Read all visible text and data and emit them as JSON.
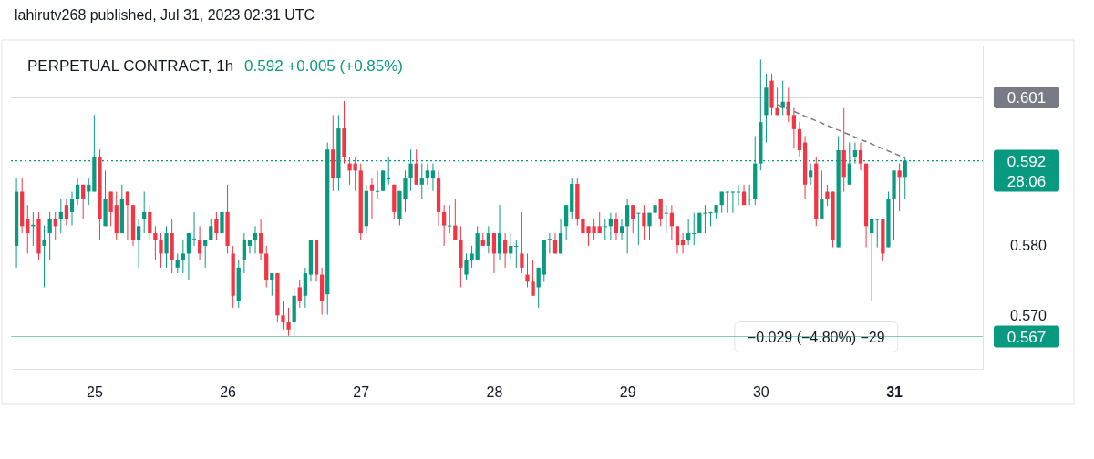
{
  "chart_data": {
    "type": "candlestick",
    "title": "PERPETUAL CONTRACT, 1h",
    "subtitle": "0.592 +0.005 (+0.85%)",
    "annotations": [
      "lahirutv268 published, Jul 31, 2023 02:31 UTC",
      "28:06",
      {
        "text": "−0.029 (−4.80%) −29",
        "x": "2023-07-30T10:00",
        "y": 0.567
      }
    ],
    "xlim": [
      "2023-07-24T09:00",
      "2023-07-31T16:00"
    ],
    "xticks": [
      {
        "value": "2023-07-25",
        "label": "25"
      },
      {
        "value": "2023-07-26",
        "label": "26"
      },
      {
        "value": "2023-07-27",
        "label": "27"
      },
      {
        "value": "2023-07-28",
        "label": "28"
      },
      {
        "value": "2023-07-29",
        "label": "29"
      },
      {
        "value": "2023-07-30",
        "label": "30"
      },
      {
        "value": "2023-07-31",
        "label": "31"
      }
    ],
    "ylim": [
      0.5624,
      0.6084
    ],
    "yticks": [
      {
        "value": 0.57,
        "label": "0.570"
      },
      {
        "value": 0.58,
        "label": "0.580"
      }
    ],
    "grid": false,
    "ref_lines": [
      {
        "axis": "y",
        "value": 0.601,
        "label": "0.601",
        "color": "#787b86",
        "line_style": "solid"
      },
      {
        "axis": "y",
        "value": 0.592,
        "label": "0.592",
        "color": "#089981",
        "line_style": "dotted"
      },
      {
        "axis": "y",
        "value": 0.567,
        "label": "0.567",
        "color": "#089981",
        "line_style": "solid"
      }
    ],
    "x": [
      "2023-07-24T10:00",
      "2023-07-24T11:00",
      "2023-07-24T12:00",
      "2023-07-24T13:00",
      "2023-07-24T14:00",
      "2023-07-24T15:00",
      "2023-07-24T16:00",
      "2023-07-24T17:00",
      "2023-07-24T18:00",
      "2023-07-24T19:00",
      "2023-07-24T20:00",
      "2023-07-24T21:00",
      "2023-07-24T22:00",
      "2023-07-24T23:00",
      "2023-07-25T00:00",
      "2023-07-25T01:00",
      "2023-07-25T02:00",
      "2023-07-25T03:00",
      "2023-07-25T04:00",
      "2023-07-25T05:00",
      "2023-07-25T06:00",
      "2023-07-25T07:00",
      "2023-07-25T08:00",
      "2023-07-25T09:00",
      "2023-07-25T10:00",
      "2023-07-25T11:00",
      "2023-07-25T12:00",
      "2023-07-25T13:00",
      "2023-07-25T14:00",
      "2023-07-25T15:00",
      "2023-07-25T16:00",
      "2023-07-25T17:00",
      "2023-07-25T18:00",
      "2023-07-25T19:00",
      "2023-07-25T20:00",
      "2023-07-25T21:00",
      "2023-07-25T22:00",
      "2023-07-25T23:00",
      "2023-07-26T00:00",
      "2023-07-26T01:00",
      "2023-07-26T02:00",
      "2023-07-26T03:00",
      "2023-07-26T04:00",
      "2023-07-26T05:00",
      "2023-07-26T06:00",
      "2023-07-26T07:00",
      "2023-07-26T08:00",
      "2023-07-26T09:00",
      "2023-07-26T10:00",
      "2023-07-26T11:00",
      "2023-07-26T12:00",
      "2023-07-26T13:00",
      "2023-07-26T14:00",
      "2023-07-26T15:00",
      "2023-07-26T16:00",
      "2023-07-26T17:00",
      "2023-07-26T18:00",
      "2023-07-26T19:00",
      "2023-07-26T20:00",
      "2023-07-26T21:00",
      "2023-07-26T22:00",
      "2023-07-26T23:00",
      "2023-07-27T00:00",
      "2023-07-27T01:00",
      "2023-07-27T02:00",
      "2023-07-27T03:00",
      "2023-07-27T04:00",
      "2023-07-27T05:00",
      "2023-07-27T06:00",
      "2023-07-27T07:00",
      "2023-07-27T08:00",
      "2023-07-27T09:00",
      "2023-07-27T10:00",
      "2023-07-27T11:00",
      "2023-07-27T12:00",
      "2023-07-27T13:00",
      "2023-07-27T14:00",
      "2023-07-27T15:00",
      "2023-07-27T16:00",
      "2023-07-27T17:00",
      "2023-07-27T18:00",
      "2023-07-27T19:00",
      "2023-07-27T20:00",
      "2023-07-27T21:00",
      "2023-07-27T22:00",
      "2023-07-27T23:00",
      "2023-07-28T00:00",
      "2023-07-28T01:00",
      "2023-07-28T02:00",
      "2023-07-28T03:00",
      "2023-07-28T04:00",
      "2023-07-28T05:00",
      "2023-07-28T06:00",
      "2023-07-28T07:00",
      "2023-07-28T08:00",
      "2023-07-28T09:00",
      "2023-07-28T10:00",
      "2023-07-28T11:00",
      "2023-07-28T12:00",
      "2023-07-28T13:00",
      "2023-07-28T14:00",
      "2023-07-28T15:00",
      "2023-07-28T16:00",
      "2023-07-28T17:00",
      "2023-07-28T18:00",
      "2023-07-28T19:00",
      "2023-07-28T20:00",
      "2023-07-28T21:00",
      "2023-07-28T22:00",
      "2023-07-28T23:00",
      "2023-07-29T00:00",
      "2023-07-29T01:00",
      "2023-07-29T02:00",
      "2023-07-29T03:00",
      "2023-07-29T04:00",
      "2023-07-29T05:00",
      "2023-07-29T06:00",
      "2023-07-29T07:00",
      "2023-07-29T08:00",
      "2023-07-29T09:00",
      "2023-07-29T10:00",
      "2023-07-29T11:00",
      "2023-07-29T12:00",
      "2023-07-29T13:00",
      "2023-07-29T14:00",
      "2023-07-29T15:00",
      "2023-07-29T16:00",
      "2023-07-29T17:00",
      "2023-07-29T18:00",
      "2023-07-29T19:00",
      "2023-07-29T20:00",
      "2023-07-29T21:00",
      "2023-07-29T22:00",
      "2023-07-29T23:00",
      "2023-07-30T00:00",
      "2023-07-30T01:00",
      "2023-07-30T02:00",
      "2023-07-30T03:00",
      "2023-07-30T04:00",
      "2023-07-30T05:00",
      "2023-07-30T06:00",
      "2023-07-30T07:00",
      "2023-07-30T08:00",
      "2023-07-30T09:00",
      "2023-07-30T10:00",
      "2023-07-30T11:00",
      "2023-07-30T12:00",
      "2023-07-30T13:00",
      "2023-07-30T14:00",
      "2023-07-30T15:00",
      "2023-07-30T16:00",
      "2023-07-30T17:00",
      "2023-07-30T18:00",
      "2023-07-30T19:00",
      "2023-07-30T20:00",
      "2023-07-30T21:00",
      "2023-07-30T22:00",
      "2023-07-30T23:00",
      "2023-07-31T00:00",
      "2023-07-31T01:00",
      "2023-07-31T02:00"
    ],
    "ohlc": [
      [
        0.5799,
        0.5896,
        0.5768,
        0.5876
      ],
      [
        0.5876,
        0.5896,
        0.5817,
        0.5827
      ],
      [
        0.5837,
        0.5857,
        0.5788,
        0.5817
      ],
      [
        0.5827,
        0.5847,
        0.5799,
        0.5829
      ],
      [
        0.5837,
        0.5847,
        0.5779,
        0.5788
      ],
      [
        0.5799,
        0.5828,
        0.574,
        0.5808
      ],
      [
        0.5817,
        0.5847,
        0.5779,
        0.5837
      ],
      [
        0.5837,
        0.5847,
        0.5808,
        0.5827
      ],
      [
        0.5837,
        0.5866,
        0.5817,
        0.5847
      ],
      [
        0.5857,
        0.5866,
        0.5828,
        0.5837
      ],
      [
        0.5847,
        0.5876,
        0.5828,
        0.5866
      ],
      [
        0.5866,
        0.5896,
        0.5857,
        0.5886
      ],
      [
        0.5886,
        0.5886,
        0.5837,
        0.5866
      ],
      [
        0.5876,
        0.5896,
        0.5857,
        0.5886
      ],
      [
        0.5876,
        0.5985,
        0.5876,
        0.5926
      ],
      [
        0.5926,
        0.5936,
        0.5808,
        0.5837
      ],
      [
        0.5827,
        0.5906,
        0.5827,
        0.5866
      ],
      [
        0.5876,
        0.5876,
        0.5827,
        0.5847
      ],
      [
        0.5857,
        0.5876,
        0.5808,
        0.5817
      ],
      [
        0.5817,
        0.5886,
        0.5817,
        0.5866
      ],
      [
        0.5876,
        0.5876,
        0.5808,
        0.5857
      ],
      [
        0.5857,
        0.5857,
        0.5799,
        0.5808
      ],
      [
        0.5808,
        0.5837,
        0.5768,
        0.5827
      ],
      [
        0.5837,
        0.5876,
        0.5817,
        0.5847
      ],
      [
        0.5847,
        0.5857,
        0.5808,
        0.5817
      ],
      [
        0.5817,
        0.5827,
        0.5779,
        0.5808
      ],
      [
        0.5808,
        0.5817,
        0.5768,
        0.5788
      ],
      [
        0.5788,
        0.5827,
        0.5768,
        0.5817
      ],
      [
        0.5817,
        0.5837,
        0.576,
        0.5779
      ],
      [
        0.5768,
        0.5788,
        0.576,
        0.5779
      ],
      [
        0.5779,
        0.5808,
        0.576,
        0.5788
      ],
      [
        0.5788,
        0.5817,
        0.575,
        0.5817
      ],
      [
        0.5808,
        0.5847,
        0.5799,
        0.5809
      ],
      [
        0.5808,
        0.5827,
        0.5779,
        0.5788
      ],
      [
        0.5799,
        0.5808,
        0.5768,
        0.5808
      ],
      [
        0.5808,
        0.5837,
        0.5808,
        0.5827
      ],
      [
        0.5837,
        0.5847,
        0.5808,
        0.5817
      ],
      [
        0.5817,
        0.5847,
        0.5799,
        0.5847
      ],
      [
        0.5847,
        0.5886,
        0.5788,
        0.5799
      ],
      [
        0.5788,
        0.5799,
        0.5711,
        0.5728
      ],
      [
        0.572,
        0.5779,
        0.5711,
        0.5768
      ],
      [
        0.5779,
        0.5817,
        0.576,
        0.5808
      ],
      [
        0.5799,
        0.5808,
        0.5788,
        0.5808
      ],
      [
        0.5808,
        0.5827,
        0.5788,
        0.5817
      ],
      [
        0.5817,
        0.5837,
        0.5779,
        0.5788
      ],
      [
        0.5788,
        0.5799,
        0.574,
        0.575
      ],
      [
        0.575,
        0.576,
        0.5728,
        0.576
      ],
      [
        0.576,
        0.576,
        0.569,
        0.57
      ],
      [
        0.57,
        0.572,
        0.568,
        0.569
      ],
      [
        0.569,
        0.5711,
        0.5671,
        0.568
      ],
      [
        0.569,
        0.574,
        0.5671,
        0.5728
      ],
      [
        0.574,
        0.575,
        0.5711,
        0.572
      ],
      [
        0.5728,
        0.5768,
        0.5711,
        0.576
      ],
      [
        0.5758,
        0.5808,
        0.5748,
        0.5808
      ],
      [
        0.5808,
        0.5808,
        0.5748,
        0.5758
      ],
      [
        0.5758,
        0.5768,
        0.5701,
        0.572
      ],
      [
        0.573,
        0.5946,
        0.5701,
        0.5936
      ],
      [
        0.5936,
        0.5985,
        0.5877,
        0.5896
      ],
      [
        0.5896,
        0.5985,
        0.5877,
        0.5966
      ],
      [
        0.5966,
        0.6005,
        0.5916,
        0.5926
      ],
      [
        0.5916,
        0.5926,
        0.5886,
        0.5906
      ],
      [
        0.5916,
        0.5926,
        0.5877,
        0.5906
      ],
      [
        0.5906,
        0.5916,
        0.5808,
        0.5817
      ],
      [
        0.5827,
        0.5886,
        0.5817,
        0.5877
      ],
      [
        0.5886,
        0.5896,
        0.5837,
        0.5877
      ],
      [
        0.5877,
        0.5906,
        0.5866,
        0.5877
      ],
      [
        0.5877,
        0.5906,
        0.5877,
        0.5906
      ],
      [
        0.5896,
        0.5926,
        0.5886,
        0.5896
      ],
      [
        0.5886,
        0.5886,
        0.5837,
        0.5847
      ],
      [
        0.5837,
        0.5877,
        0.5828,
        0.5877
      ],
      [
        0.5866,
        0.5906,
        0.5847,
        0.5896
      ],
      [
        0.5896,
        0.5936,
        0.5877,
        0.5916
      ],
      [
        0.5916,
        0.5936,
        0.5886,
        0.5886
      ],
      [
        0.5886,
        0.5916,
        0.5866,
        0.5896
      ],
      [
        0.5896,
        0.5916,
        0.5886,
        0.5906
      ],
      [
        0.5896,
        0.5916,
        0.5877,
        0.5906
      ],
      [
        0.5896,
        0.5906,
        0.5828,
        0.5847
      ],
      [
        0.5847,
        0.5857,
        0.5799,
        0.5828
      ],
      [
        0.5828,
        0.5857,
        0.5817,
        0.5828
      ],
      [
        0.5828,
        0.5866,
        0.5808,
        0.5808
      ],
      [
        0.5808,
        0.5827,
        0.574,
        0.5768
      ],
      [
        0.5758,
        0.5788,
        0.575,
        0.5779
      ],
      [
        0.5779,
        0.5799,
        0.5768,
        0.5788
      ],
      [
        0.5779,
        0.5827,
        0.5779,
        0.5817
      ],
      [
        0.5808,
        0.5817,
        0.5799,
        0.5799
      ],
      [
        0.5799,
        0.5827,
        0.5788,
        0.5817
      ],
      [
        0.5817,
        0.5817,
        0.576,
        0.5788
      ],
      [
        0.5788,
        0.5857,
        0.5779,
        0.5817
      ],
      [
        0.5808,
        0.5817,
        0.5768,
        0.5788
      ],
      [
        0.5788,
        0.5817,
        0.5779,
        0.5799
      ],
      [
        0.5799,
        0.5808,
        0.5768,
        0.5799
      ],
      [
        0.5788,
        0.5847,
        0.576,
        0.5768
      ],
      [
        0.5758,
        0.5788,
        0.574,
        0.5748
      ],
      [
        0.5748,
        0.5779,
        0.5728,
        0.5728
      ],
      [
        0.574,
        0.5768,
        0.5711,
        0.5768
      ],
      [
        0.5758,
        0.5808,
        0.5748,
        0.5808
      ],
      [
        0.5808,
        0.5817,
        0.5788,
        0.5809
      ],
      [
        0.5808,
        0.5817,
        0.5788,
        0.5788
      ],
      [
        0.5788,
        0.5837,
        0.5788,
        0.5817
      ],
      [
        0.5827,
        0.5857,
        0.5808,
        0.5857
      ],
      [
        0.5847,
        0.5896,
        0.5837,
        0.5887
      ],
      [
        0.5887,
        0.5896,
        0.5828,
        0.5837
      ],
      [
        0.5837,
        0.5847,
        0.5808,
        0.5817
      ],
      [
        0.5827,
        0.5827,
        0.5799,
        0.5817
      ],
      [
        0.5827,
        0.5837,
        0.5808,
        0.5817
      ],
      [
        0.5827,
        0.5847,
        0.5817,
        0.5817
      ],
      [
        0.5827,
        0.5837,
        0.5808,
        0.5827
      ],
      [
        0.5827,
        0.5846,
        0.5808,
        0.5837
      ],
      [
        0.5837,
        0.5846,
        0.5808,
        0.5817
      ],
      [
        0.5817,
        0.5837,
        0.5808,
        0.5827
      ],
      [
        0.5827,
        0.5866,
        0.5788,
        0.5857
      ],
      [
        0.5857,
        0.5857,
        0.5817,
        0.5837
      ],
      [
        0.5846,
        0.5846,
        0.58,
        0.5846
      ],
      [
        0.5846,
        0.5857,
        0.5808,
        0.5827
      ],
      [
        0.5827,
        0.5846,
        0.5808,
        0.5846
      ],
      [
        0.5846,
        0.5866,
        0.5827,
        0.5857
      ],
      [
        0.5866,
        0.5866,
        0.5827,
        0.5837
      ],
      [
        0.5846,
        0.5857,
        0.5817,
        0.5846
      ],
      [
        0.5846,
        0.5857,
        0.5808,
        0.5827
      ],
      [
        0.5827,
        0.5827,
        0.5788,
        0.58
      ],
      [
        0.5808,
        0.5817,
        0.5788,
        0.58
      ],
      [
        0.5808,
        0.5837,
        0.58,
        0.5817
      ],
      [
        0.5817,
        0.5846,
        0.58,
        0.5817
      ],
      [
        0.5817,
        0.5846,
        0.5817,
        0.5846
      ],
      [
        0.5846,
        0.5857,
        0.5817,
        0.5846
      ],
      [
        0.5846,
        0.5847,
        0.5827,
        0.5847
      ],
      [
        0.5846,
        0.5857,
        0.5837,
        0.5857
      ],
      [
        0.5857,
        0.5876,
        0.5846,
        0.5876
      ],
      [
        0.5876,
        0.5876,
        0.5846,
        0.5876
      ],
      [
        0.5876,
        0.5876,
        0.5846,
        0.5876
      ],
      [
        0.5876,
        0.5886,
        0.5857,
        0.5876
      ],
      [
        0.5876,
        0.5886,
        0.5857,
        0.5857
      ],
      [
        0.5866,
        0.5886,
        0.5857,
        0.5866
      ],
      [
        0.5866,
        0.5955,
        0.5857,
        0.5916
      ],
      [
        0.5916,
        0.6064,
        0.5906,
        0.5975
      ],
      [
        0.5985,
        0.6044,
        0.5946,
        0.6024
      ],
      [
        0.6034,
        0.6044,
        0.5985,
        0.5995
      ],
      [
        0.5995,
        0.6024,
        0.5985,
        0.5985
      ],
      [
        0.5995,
        0.6034,
        0.5985,
        0.6004
      ],
      [
        0.6004,
        0.6024,
        0.5975,
        0.5985
      ],
      [
        0.5985,
        0.5995,
        0.5937,
        0.5965
      ],
      [
        0.5965,
        0.5975,
        0.5926,
        0.5935
      ],
      [
        0.5946,
        0.5955,
        0.5866,
        0.5886
      ],
      [
        0.5897,
        0.5916,
        0.5886,
        0.5906
      ],
      [
        0.5916,
        0.5926,
        0.5827,
        0.5837
      ],
      [
        0.5837,
        0.5906,
        0.5837,
        0.5866
      ],
      [
        0.5876,
        0.5886,
        0.5856,
        0.5866
      ],
      [
        0.5876,
        0.5876,
        0.5797,
        0.5808
      ],
      [
        0.5797,
        0.5955,
        0.5797,
        0.5935
      ],
      [
        0.5935,
        0.5995,
        0.5876,
        0.5897
      ],
      [
        0.5886,
        0.5946,
        0.5886,
        0.5916
      ],
      [
        0.5926,
        0.5946,
        0.5916,
        0.5935
      ],
      [
        0.5935,
        0.5946,
        0.5906,
        0.5916
      ],
      [
        0.5916,
        0.5916,
        0.5797,
        0.5827
      ],
      [
        0.5817,
        0.5837,
        0.572,
        0.5837
      ],
      [
        0.5837,
        0.5837,
        0.5797,
        0.5837
      ],
      [
        0.5837,
        0.5837,
        0.5777,
        0.5788
      ],
      [
        0.5797,
        0.5876,
        0.5797,
        0.5866
      ],
      [
        0.5866,
        0.5906,
        0.5808,
        0.5906
      ],
      [
        0.5906,
        0.5916,
        0.5848,
        0.5897
      ],
      [
        0.5897,
        0.5926,
        0.5866,
        0.592
      ]
    ],
    "series": [
      {
        "type": "line",
        "x": [
          "2023-07-30T03:00",
          "2023-07-31T02:00"
        ],
        "values": [
          0.6,
          0.5924
        ],
        "color": "#787b86",
        "line_style": "dashed"
      }
    ]
  }
}
